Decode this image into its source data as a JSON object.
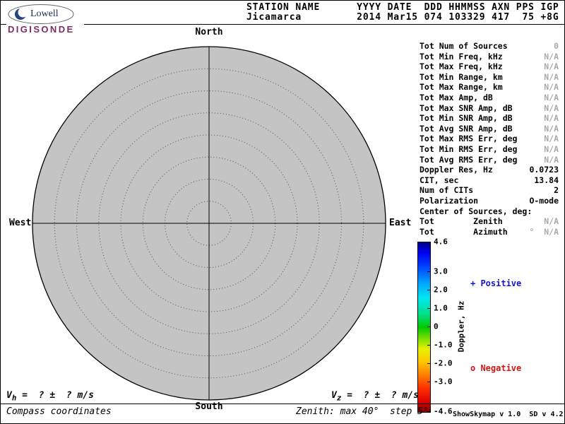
{
  "logo": {
    "brand": "Lowell",
    "product": "DIGISONDE"
  },
  "header": {
    "line1": "STATION NAME      YYYY DATE  DDD HHMMSS AXN PPS IGP",
    "line2": "Jicamarca         2014 Mar15 074 103329 417  75 +8G"
  },
  "compass": {
    "north": "North",
    "south": "South",
    "west": "West",
    "east": "East"
  },
  "plot": {
    "type": "polar-skymap",
    "zenith_max_deg": 40,
    "zenith_step_deg": 5,
    "num_sources": 0,
    "disc_color": "#c4c4c4"
  },
  "params": [
    {
      "label": "Tot Num of Sources",
      "value": "0",
      "muted": true
    },
    {
      "label": "Tot Min Freq, kHz",
      "value": "N/A",
      "muted": true
    },
    {
      "label": "Tot Max Freq, kHz",
      "value": "N/A",
      "muted": true
    },
    {
      "label": "Tot Min Range, km",
      "value": "N/A",
      "muted": true
    },
    {
      "label": "Tot Max Range, km",
      "value": "N/A",
      "muted": true
    },
    {
      "label": "Tot Max Amp, dB",
      "value": "N/A",
      "muted": true
    },
    {
      "label": "Tot Max SNR Amp, dB",
      "value": "N/A",
      "muted": true
    },
    {
      "label": "Tot Min SNR Amp, dB",
      "value": "N/A",
      "muted": true
    },
    {
      "label": "Tot Avg SNR Amp, dB",
      "value": "N/A",
      "muted": true
    },
    {
      "label": "Tot Max RMS Err, deg",
      "value": "N/A",
      "muted": true
    },
    {
      "label": "Tot Min RMS Err, deg",
      "value": "N/A",
      "muted": true
    },
    {
      "label": "Tot Avg RMS Err, deg",
      "value": "N/A",
      "muted": true
    },
    {
      "label": "Doppler Res, Hz",
      "value": "0.0723",
      "muted": false
    },
    {
      "label": "CIT, sec",
      "value": "13.84",
      "muted": false
    },
    {
      "label": "Num of CITs",
      "value": "2",
      "muted": false
    },
    {
      "label": "Polarization",
      "value": "O-mode",
      "muted": false
    },
    {
      "label": "Center of Sources, deg:",
      "value": "",
      "muted": false
    },
    {
      "label": "Tot        Zenith",
      "value": "N/A",
      "muted": true
    },
    {
      "label": "Tot        Azimuth",
      "value": "°  N/A",
      "muted": true
    }
  ],
  "colorbar": {
    "title": "Doppler, Hz",
    "max": 4.6,
    "min": -4.6,
    "ticks": [
      {
        "label": "4.6",
        "value": 4.6
      },
      {
        "label": "3.0",
        "value": 3.0
      },
      {
        "label": "2.0",
        "value": 2.0
      },
      {
        "label": "1.0",
        "value": 1.0
      },
      {
        "label": "0",
        "value": 0
      },
      {
        "label": "-1.0",
        "value": -1.0
      },
      {
        "label": "-2.0",
        "value": -2.0
      },
      {
        "label": "-3.0",
        "value": -3.0
      },
      {
        "label": "-4.6",
        "value": -4.6
      }
    ]
  },
  "legend": {
    "positive_label": "+ Positive",
    "negative_label": "o Negative",
    "positive_color": "#1515cc",
    "negative_color": "#cc1515"
  },
  "footer": {
    "vh_prefix": "V",
    "vh_sub": "h",
    "vh_rest": " =  ? ±  ? m/s",
    "vz_prefix": "V",
    "vz_sub": "z",
    "vz_rest": " =  ? ±  ? m/s",
    "compass_note": "Compass coordinates",
    "zenith_note": "Zenith: max 40°  step 5°",
    "version": "ShowSkymap v 1.0  SD v 4.2"
  }
}
